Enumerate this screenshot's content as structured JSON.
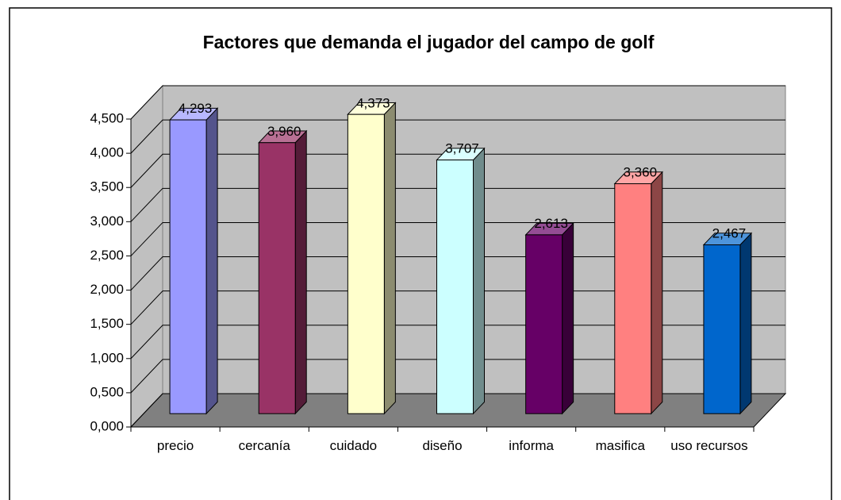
{
  "chart_data": {
    "type": "bar3d",
    "title": "Factores que demanda el jugador del campo de golf",
    "categories": [
      "precio",
      "cercanía",
      "cuidado",
      "diseño",
      "informa",
      "masifica",
      "uso recursos"
    ],
    "values": [
      4.293,
      3.96,
      4.373,
      3.707,
      2.613,
      3.36,
      2.467
    ],
    "value_labels": [
      "4,293",
      "3,960",
      "4,373",
      "3,707",
      "2,613",
      "3,360",
      "2,467"
    ],
    "colors": [
      "#9999ff",
      "#993366",
      "#ffffcc",
      "#ccffff",
      "#660066",
      "#ff8080",
      "#0066cc"
    ],
    "ylim": [
      0,
      4.5
    ],
    "yticks": [
      {
        "value": 0,
        "label": "0,000"
      },
      {
        "value": 0.5,
        "label": "0,500"
      },
      {
        "value": 1,
        "label": "1,000"
      },
      {
        "value": 1.5,
        "label": "1,500"
      },
      {
        "value": 2,
        "label": "2,000"
      },
      {
        "value": 2.5,
        "label": "2,500"
      },
      {
        "value": 3,
        "label": "3,000"
      },
      {
        "value": 3.5,
        "label": "3,500"
      },
      {
        "value": 4,
        "label": "4,000"
      },
      {
        "value": 4.5,
        "label": "4,500"
      }
    ],
    "grid": true
  }
}
